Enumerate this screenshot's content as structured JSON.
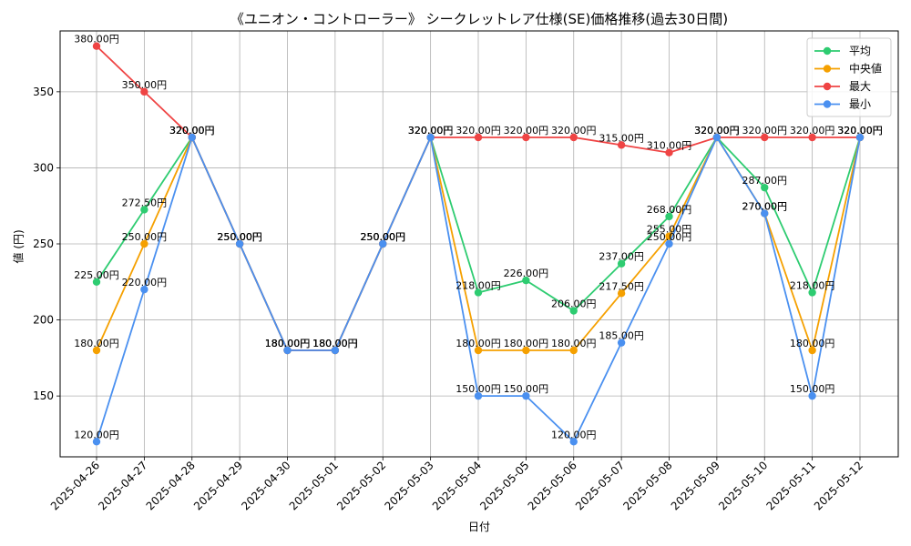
{
  "chart_data": {
    "type": "line",
    "title": "《ユニオン・コントローラー》 シークレットレア仕様(SE)価格推移(過去30日間)",
    "xlabel": "日付",
    "ylabel": "値 (円)",
    "x": [
      "2025-04-26",
      "2025-04-27",
      "2025-04-28",
      "2025-04-29",
      "2025-04-30",
      "2025-05-01",
      "2025-05-02",
      "2025-05-03",
      "2025-05-04",
      "2025-05-05",
      "2025-05-06",
      "2025-05-07",
      "2025-05-08",
      "2025-05-09",
      "2025-05-10",
      "2025-05-11",
      "2025-05-12"
    ],
    "yticks": [
      150,
      200,
      250,
      300,
      350
    ],
    "ylim": [
      110,
      390
    ],
    "grid": true,
    "legend_position": "top-right",
    "label_suffix": "円",
    "series": [
      {
        "name": "平均",
        "color": "#2ecc71",
        "values": [
          225,
          272.5,
          320,
          250,
          180,
          180,
          250,
          320,
          218,
          226,
          206,
          237,
          268,
          320,
          287,
          218,
          320
        ]
      },
      {
        "name": "中央値",
        "color": "#f5a000",
        "values": [
          180,
          250,
          320,
          250,
          180,
          180,
          250,
          320,
          180,
          180,
          180,
          217.5,
          255,
          320,
          270,
          180,
          320
        ]
      },
      {
        "name": "最大",
        "color": "#ef4444",
        "values": [
          380,
          350,
          320,
          250,
          180,
          180,
          250,
          320,
          320,
          320,
          320,
          315,
          310,
          320,
          320,
          320,
          320
        ]
      },
      {
        "name": "最小",
        "color": "#4a90f0",
        "values": [
          120,
          220,
          320,
          250,
          180,
          180,
          250,
          320,
          150,
          150,
          120,
          185,
          250,
          320,
          270,
          150,
          320
        ]
      }
    ]
  }
}
